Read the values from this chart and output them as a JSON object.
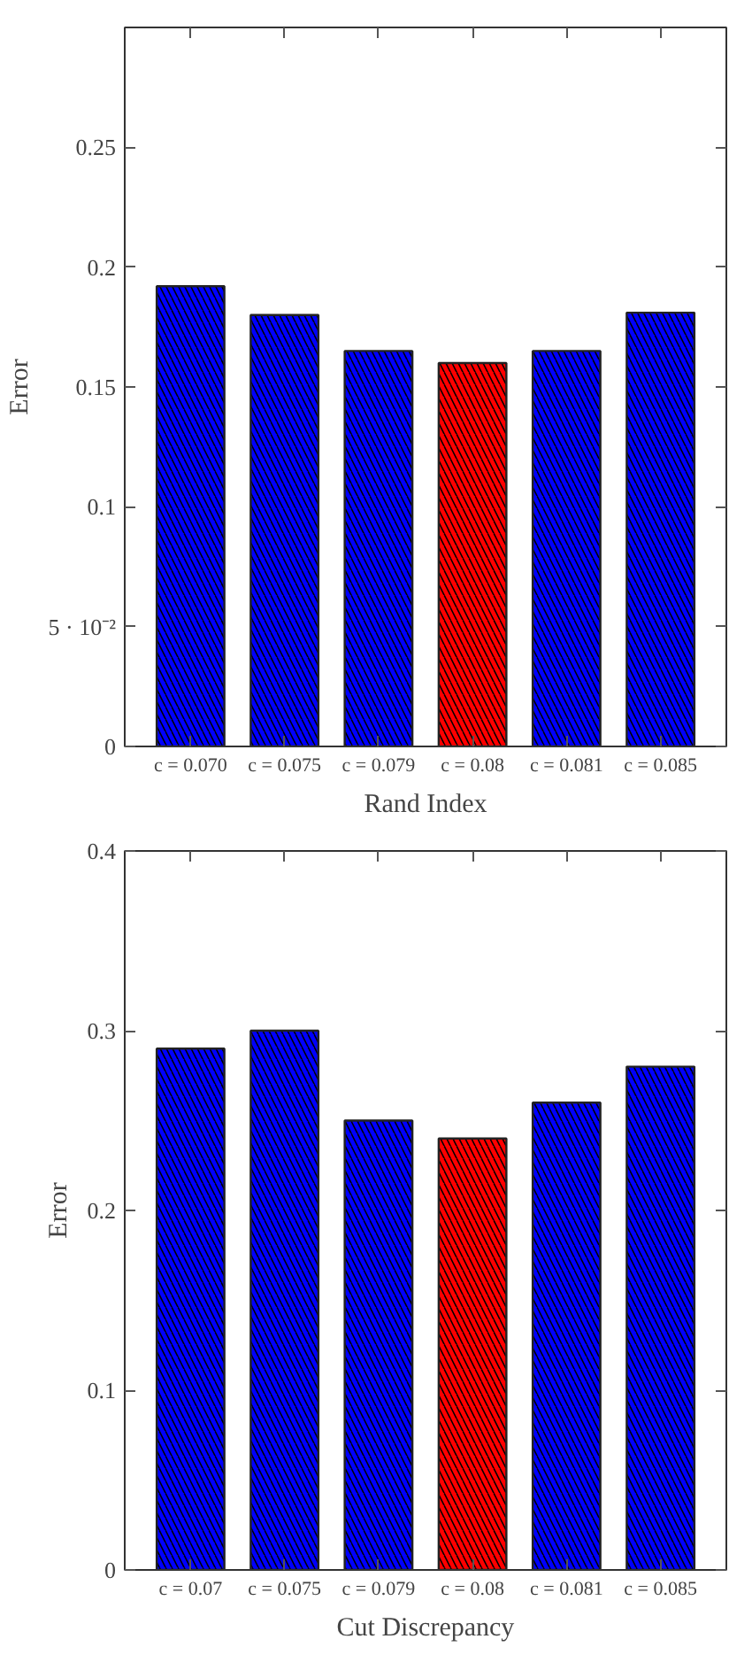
{
  "chart_data": [
    {
      "type": "bar",
      "xlabel": "Rand Index",
      "ylabel": "Error",
      "categories": [
        "c = 0.070",
        "c = 0.075",
        "c = 0.079",
        "c = 0.08",
        "c = 0.081",
        "c = 0.085"
      ],
      "values": [
        0.192,
        0.18,
        0.165,
        0.16,
        0.165,
        0.181
      ],
      "colors": [
        "#0000ff",
        "#0000ff",
        "#0000ff",
        "#ff0000",
        "#0000ff",
        "#0000ff"
      ],
      "ylim": [
        0,
        0.3
      ],
      "yticks": [
        0,
        {
          "value": 0.05,
          "label": "5 · 10⁻²"
        },
        0.1,
        0.15,
        0.2,
        0.25
      ],
      "grid": false
    },
    {
      "type": "bar",
      "xlabel": "Cut Discrepancy",
      "ylabel": "Error",
      "categories": [
        "c = 0.07",
        "c = 0.075",
        "c = 0.079",
        "c = 0.08",
        "c = 0.081",
        "c = 0.085"
      ],
      "values": [
        0.29,
        0.3,
        0.25,
        0.24,
        0.26,
        0.28
      ],
      "colors": [
        "#0000ff",
        "#0000ff",
        "#0000ff",
        "#ff0000",
        "#0000ff",
        "#0000ff"
      ],
      "ylim": [
        0,
        0.4
      ],
      "yticks": [
        0,
        0.1,
        0.2,
        0.3,
        0.4
      ],
      "grid": false
    }
  ]
}
